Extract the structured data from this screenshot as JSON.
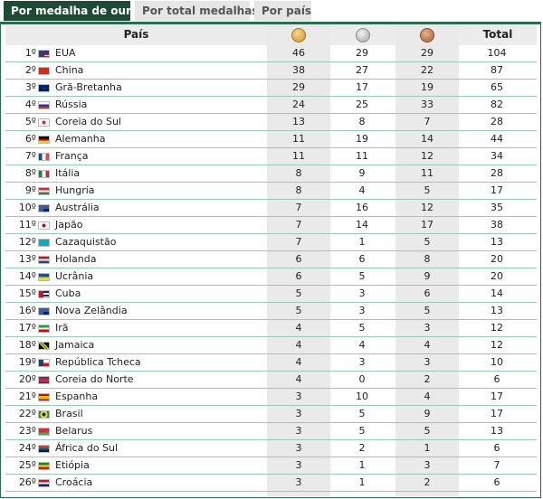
{
  "tabs": [
    {
      "label": "Por medalha de ouro",
      "active": true
    },
    {
      "label": "Por total medalhas",
      "active": false
    },
    {
      "label": "Por país",
      "active": false
    }
  ],
  "header": {
    "country": "País",
    "gold_icon": "gold-medal-icon",
    "silver_icon": "silver-medal-icon",
    "bronze_icon": "bronze-medal-icon",
    "total": "Total"
  },
  "colors": {
    "accent": "#1f4a36",
    "row_divider": "#9cc9b6",
    "shaded_column": "#eaeaea"
  },
  "rows": [
    {
      "rank": "1º",
      "flag": "usa-flag-icon",
      "country": "EUA",
      "gold": "46",
      "silver": "29",
      "bronze": "29",
      "total": "104"
    },
    {
      "rank": "2º",
      "flag": "china-flag-icon",
      "country": "China",
      "gold": "38",
      "silver": "27",
      "bronze": "22",
      "total": "87"
    },
    {
      "rank": "3º",
      "flag": "uk-flag-icon",
      "country": "Grã-Bretanha",
      "gold": "29",
      "silver": "17",
      "bronze": "19",
      "total": "65"
    },
    {
      "rank": "4º",
      "flag": "russia-flag-icon",
      "country": "Rússia",
      "gold": "24",
      "silver": "25",
      "bronze": "33",
      "total": "82"
    },
    {
      "rank": "5º",
      "flag": "south-korea-flag-icon",
      "country": "Coreia do Sul",
      "gold": "13",
      "silver": "8",
      "bronze": "7",
      "total": "28"
    },
    {
      "rank": "6º",
      "flag": "germany-flag-icon",
      "country": "Alemanha",
      "gold": "11",
      "silver": "19",
      "bronze": "14",
      "total": "44"
    },
    {
      "rank": "7º",
      "flag": "france-flag-icon",
      "country": "França",
      "gold": "11",
      "silver": "11",
      "bronze": "12",
      "total": "34"
    },
    {
      "rank": "8º",
      "flag": "italy-flag-icon",
      "country": "Itália",
      "gold": "8",
      "silver": "9",
      "bronze": "11",
      "total": "28"
    },
    {
      "rank": "9º",
      "flag": "hungary-flag-icon",
      "country": "Hungria",
      "gold": "8",
      "silver": "4",
      "bronze": "5",
      "total": "17"
    },
    {
      "rank": "10º",
      "flag": "australia-flag-icon",
      "country": "Austrália",
      "gold": "7",
      "silver": "16",
      "bronze": "12",
      "total": "35"
    },
    {
      "rank": "11º",
      "flag": "japan-flag-icon",
      "country": "Japão",
      "gold": "7",
      "silver": "14",
      "bronze": "17",
      "total": "38"
    },
    {
      "rank": "12º",
      "flag": "kazakhstan-flag-icon",
      "country": "Cazaquistão",
      "gold": "7",
      "silver": "1",
      "bronze": "5",
      "total": "13"
    },
    {
      "rank": "13º",
      "flag": "netherlands-flag-icon",
      "country": "Holanda",
      "gold": "6",
      "silver": "6",
      "bronze": "8",
      "total": "20"
    },
    {
      "rank": "14º",
      "flag": "ukraine-flag-icon",
      "country": "Ucrânia",
      "gold": "6",
      "silver": "5",
      "bronze": "9",
      "total": "20"
    },
    {
      "rank": "15º",
      "flag": "cuba-flag-icon",
      "country": "Cuba",
      "gold": "5",
      "silver": "3",
      "bronze": "6",
      "total": "14"
    },
    {
      "rank": "16º",
      "flag": "new-zealand-flag-icon",
      "country": "Nova Zelândia",
      "gold": "5",
      "silver": "3",
      "bronze": "5",
      "total": "13"
    },
    {
      "rank": "17º",
      "flag": "iran-flag-icon",
      "country": "Irã",
      "gold": "4",
      "silver": "5",
      "bronze": "3",
      "total": "12"
    },
    {
      "rank": "18º",
      "flag": "jamaica-flag-icon",
      "country": "Jamaica",
      "gold": "4",
      "silver": "4",
      "bronze": "4",
      "total": "12"
    },
    {
      "rank": "19º",
      "flag": "czech-republic-flag-icon",
      "country": "República Tcheca",
      "gold": "4",
      "silver": "3",
      "bronze": "3",
      "total": "10"
    },
    {
      "rank": "20º",
      "flag": "north-korea-flag-icon",
      "country": "Coreia do Norte",
      "gold": "4",
      "silver": "0",
      "bronze": "2",
      "total": "6"
    },
    {
      "rank": "21º",
      "flag": "spain-flag-icon",
      "country": "Espanha",
      "gold": "3",
      "silver": "10",
      "bronze": "4",
      "total": "17"
    },
    {
      "rank": "22º",
      "flag": "brazil-flag-icon",
      "country": "Brasil",
      "gold": "3",
      "silver": "5",
      "bronze": "9",
      "total": "17"
    },
    {
      "rank": "23º",
      "flag": "belarus-flag-icon",
      "country": "Belarus",
      "gold": "3",
      "silver": "5",
      "bronze": "5",
      "total": "13"
    },
    {
      "rank": "24º",
      "flag": "south-africa-flag-icon",
      "country": "África do Sul",
      "gold": "3",
      "silver": "2",
      "bronze": "1",
      "total": "6"
    },
    {
      "rank": "25º",
      "flag": "ethiopia-flag-icon",
      "country": "Etiópia",
      "gold": "3",
      "silver": "1",
      "bronze": "3",
      "total": "7"
    },
    {
      "rank": "26º",
      "flag": "croatia-flag-icon",
      "country": "Croácia",
      "gold": "3",
      "silver": "1",
      "bronze": "2",
      "total": "6"
    }
  ]
}
